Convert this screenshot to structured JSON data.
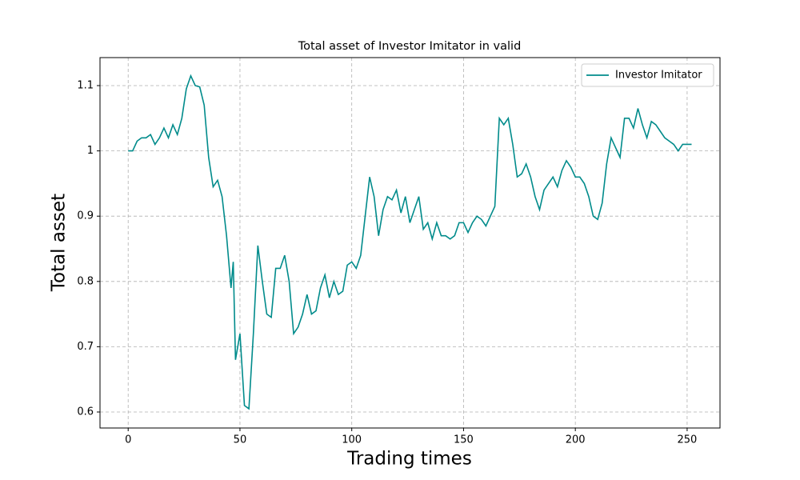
{
  "chart_data": {
    "type": "line",
    "title": "Total asset of Investor Imitator in valid",
    "x_label": "Trading times",
    "y_label": "Total asset",
    "x": [
      0,
      2,
      4,
      6,
      8,
      10,
      12,
      14,
      16,
      18,
      20,
      22,
      24,
      26,
      28,
      30,
      32,
      34,
      36,
      38,
      40,
      42,
      44,
      46,
      47,
      48,
      50,
      52,
      54,
      56,
      58,
      60,
      62,
      64,
      66,
      68,
      70,
      72,
      74,
      76,
      78,
      80,
      82,
      84,
      86,
      88,
      90,
      92,
      94,
      96,
      98,
      100,
      102,
      104,
      106,
      108,
      110,
      112,
      114,
      116,
      118,
      120,
      122,
      124,
      126,
      128,
      130,
      132,
      134,
      136,
      138,
      140,
      142,
      144,
      146,
      148,
      150,
      152,
      154,
      156,
      158,
      160,
      162,
      164,
      166,
      168,
      170,
      172,
      174,
      176,
      178,
      180,
      182,
      184,
      186,
      188,
      190,
      192,
      194,
      196,
      198,
      200,
      202,
      204,
      206,
      208,
      210,
      212,
      214,
      216,
      218,
      220,
      222,
      224,
      226,
      228,
      230,
      232,
      234,
      236,
      238,
      240,
      242,
      244,
      246,
      248,
      250,
      252
    ],
    "series": [
      {
        "name": "Investor Imitator",
        "color": "#008b8b",
        "values": [
          1.0,
          1.0,
          1.015,
          1.02,
          1.02,
          1.025,
          1.01,
          1.02,
          1.035,
          1.02,
          1.04,
          1.025,
          1.05,
          1.095,
          1.115,
          1.1,
          1.098,
          1.07,
          0.99,
          0.945,
          0.955,
          0.93,
          0.87,
          0.79,
          0.83,
          0.68,
          0.72,
          0.61,
          0.605,
          0.72,
          0.855,
          0.8,
          0.75,
          0.745,
          0.82,
          0.82,
          0.84,
          0.8,
          0.72,
          0.73,
          0.75,
          0.78,
          0.75,
          0.755,
          0.79,
          0.81,
          0.775,
          0.8,
          0.78,
          0.785,
          0.825,
          0.83,
          0.82,
          0.84,
          0.9,
          0.96,
          0.93,
          0.87,
          0.91,
          0.93,
          0.925,
          0.94,
          0.905,
          0.93,
          0.89,
          0.91,
          0.93,
          0.88,
          0.89,
          0.865,
          0.89,
          0.87,
          0.87,
          0.865,
          0.87,
          0.89,
          0.89,
          0.875,
          0.89,
          0.9,
          0.895,
          0.885,
          0.9,
          0.915,
          1.05,
          1.04,
          1.05,
          1.01,
          0.96,
          0.965,
          0.98,
          0.96,
          0.93,
          0.91,
          0.94,
          0.95,
          0.96,
          0.945,
          0.97,
          0.985,
          0.975,
          0.96,
          0.96,
          0.95,
          0.93,
          0.9,
          0.895,
          0.92,
          0.98,
          1.02,
          1.005,
          0.99,
          1.05,
          1.05,
          1.035,
          1.065,
          1.04,
          1.02,
          1.045,
          1.04,
          1.03,
          1.02,
          1.015,
          1.01,
          1.0,
          1.01,
          1.01,
          1.01
        ]
      }
    ],
    "xlim": [
      -12.6,
      264.7
    ],
    "ylim": [
      0.5755,
      1.1429
    ],
    "xticks": [
      0,
      50,
      100,
      150,
      200,
      250
    ],
    "yticks": [
      0.6,
      0.7,
      0.8,
      0.9,
      1.0,
      1.1
    ],
    "grid": true,
    "legend": "upper-right"
  }
}
